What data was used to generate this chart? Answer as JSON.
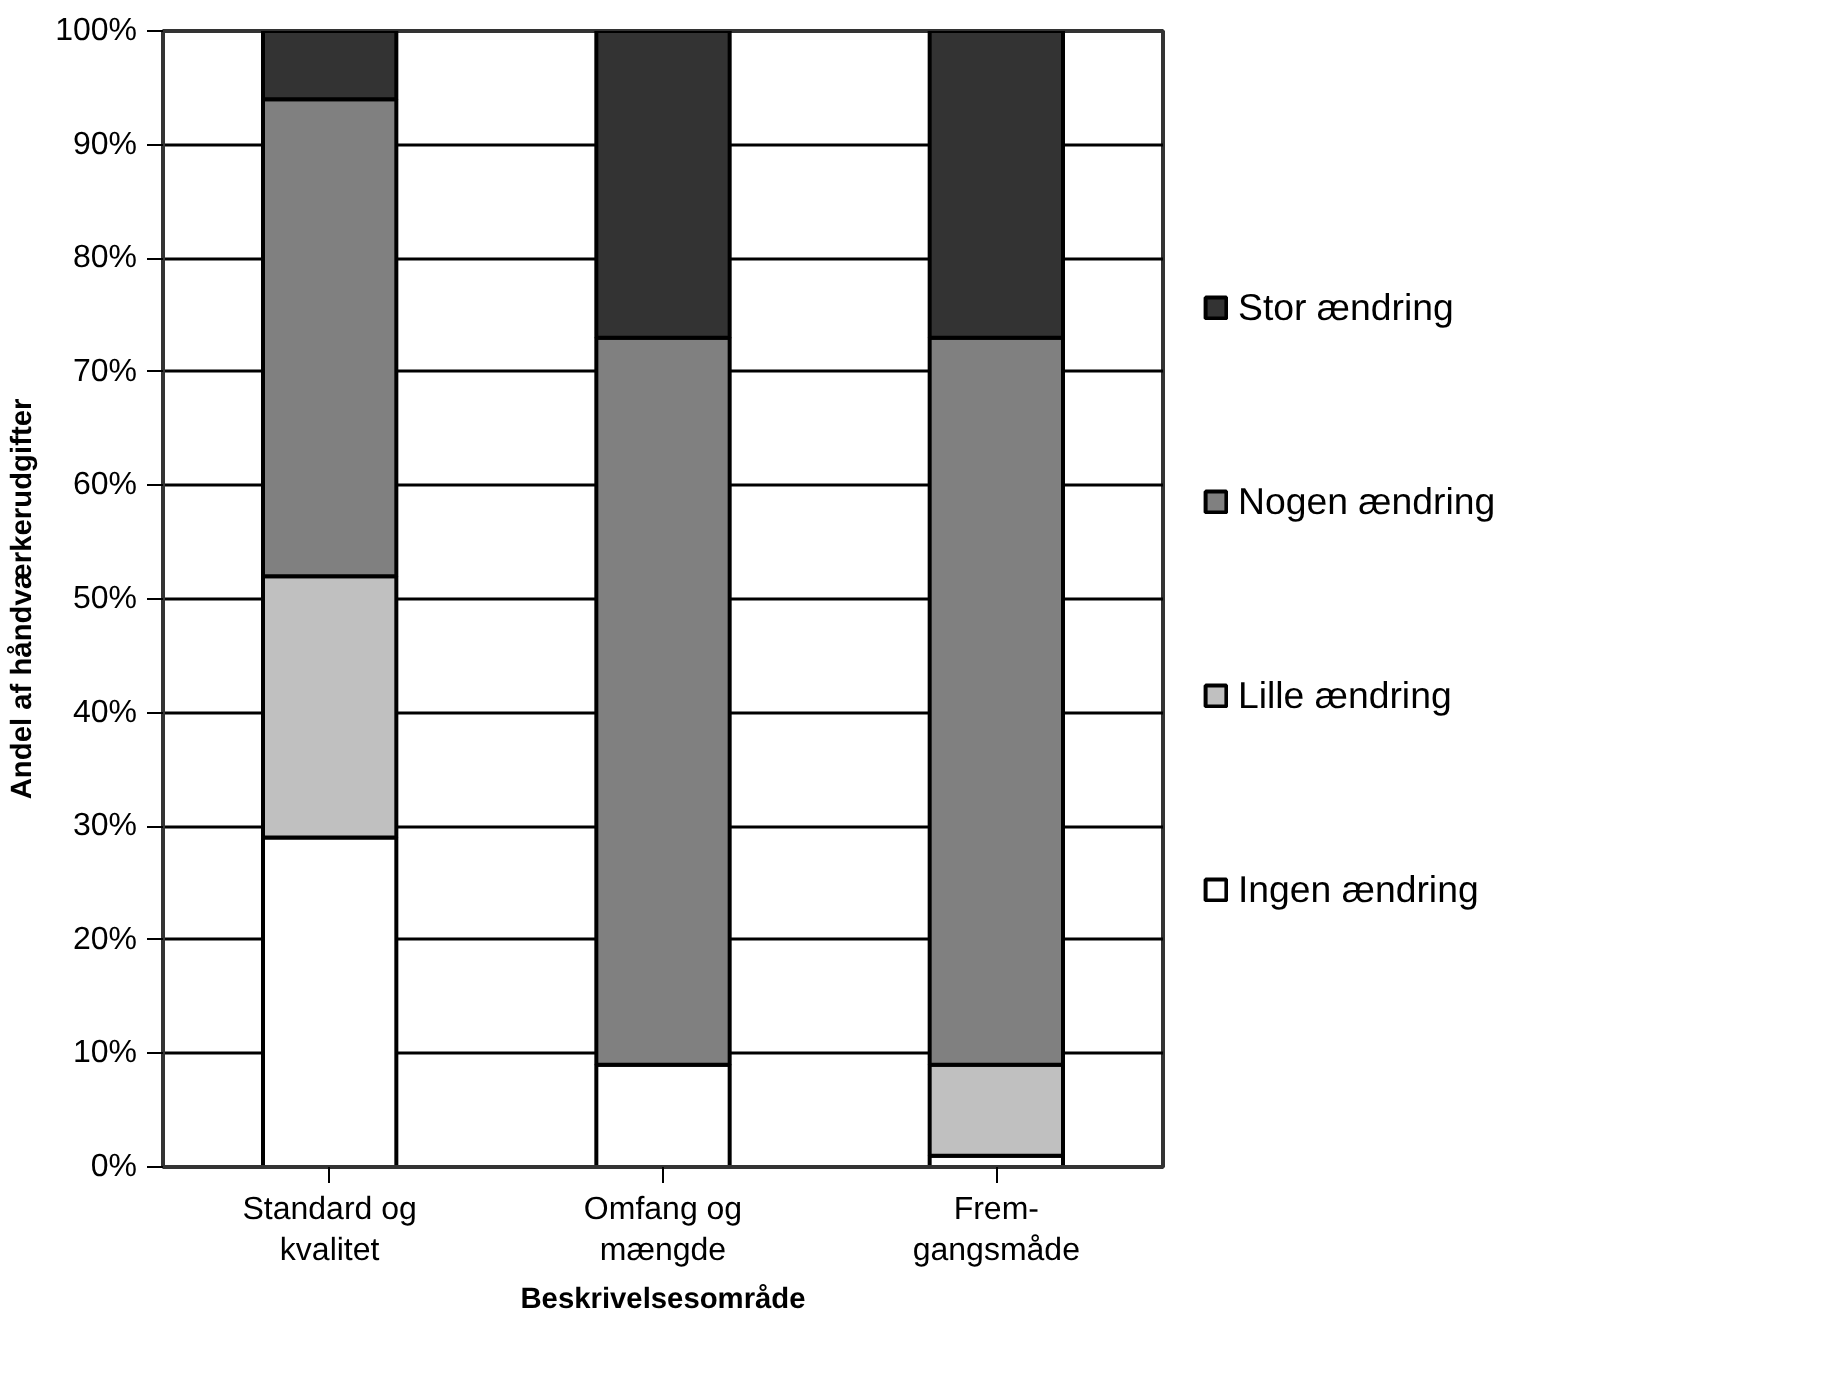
{
  "chart_data": {
    "type": "bar",
    "stacked": true,
    "xlabel": "Beskrivelsesområde",
    "ylabel": "Andel af håndværkerudgifter",
    "categories": [
      "Standard og\nkvalitet",
      "Omfang og\nmængde",
      "Frem-\ngangsmåde"
    ],
    "series": [
      {
        "name": "Ingen ændring",
        "color": "#ffffff",
        "values": [
          29,
          9,
          1
        ]
      },
      {
        "name": "Lille ændring",
        "color": "#c0c0c0",
        "values": [
          23,
          0,
          8
        ]
      },
      {
        "name": "Nogen ændring",
        "color": "#808080",
        "values": [
          42,
          64,
          64
        ]
      },
      {
        "name": "Stor ændring",
        "color": "#333333",
        "values": [
          6,
          27,
          27
        ]
      }
    ],
    "ylim": [
      0,
      100
    ],
    "yticks": [
      {
        "value": 0,
        "label": "0%"
      },
      {
        "value": 10,
        "label": "10%"
      },
      {
        "value": 20,
        "label": "20%"
      },
      {
        "value": 30,
        "label": "30%"
      },
      {
        "value": 40,
        "label": "40%"
      },
      {
        "value": 50,
        "label": "50%"
      },
      {
        "value": 60,
        "label": "60%"
      },
      {
        "value": 70,
        "label": "70%"
      },
      {
        "value": 80,
        "label": "80%"
      },
      {
        "value": 90,
        "label": "90%"
      },
      {
        "value": 100,
        "label": "100%"
      }
    ],
    "grid": "y",
    "legend": "right"
  }
}
